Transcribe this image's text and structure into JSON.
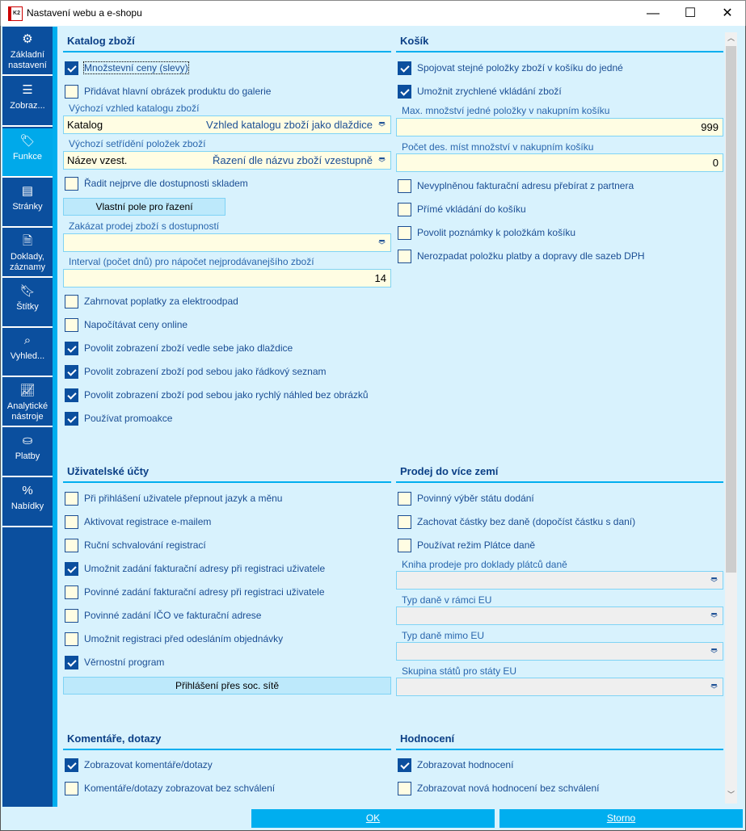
{
  "window": {
    "title": "Nastavení webu a e-shopu",
    "app_logo": "K2",
    "minimize": "—",
    "maximize": "☐",
    "close": "✕"
  },
  "sidebar": {
    "items": [
      {
        "label": "Základní nastavení",
        "icon": "gear-icon"
      },
      {
        "label": "Zobraz...",
        "icon": "list-icon"
      },
      {
        "label": "Funkce",
        "icon": "tag-icon",
        "active": true
      },
      {
        "label": "Stránky",
        "icon": "page-icon"
      },
      {
        "label": "Doklady, záznamy",
        "icon": "document-icon"
      },
      {
        "label": "Štítky",
        "icon": "bookmark-icon"
      },
      {
        "label": "Vyhled...",
        "icon": "search-icon"
      },
      {
        "label": "Analytické nástroje",
        "icon": "chart-icon"
      },
      {
        "label": "Platby",
        "icon": "payment-icon"
      },
      {
        "label": "Nabídky",
        "icon": "percent-icon"
      }
    ]
  },
  "katalog": {
    "title": "Katalog zboží",
    "c1": {
      "label": "Množstevní ceny (slevy)",
      "checked": true
    },
    "c2": {
      "label": "Přidávat hlavní obrázek produktu do galerie",
      "checked": false
    },
    "vzhled_label": "Výchozí vzhled katalogu zboží",
    "vzhled_value": "Katalog",
    "vzhled_desc": "Vzhled katalogu zboží jako dlaždice",
    "setrideni_label": "Výchozí setřídění položek zboží",
    "setrideni_value": "Název vzest.",
    "setrideni_desc": "Řazení dle názvu zboží vzestupně",
    "c3": {
      "label": "Řadit nejprve dle dostupnosti skladem",
      "checked": false
    },
    "vlastni_pole_button": "Vlastní pole pro řazení",
    "zakazat_label": "Zakázat prodej zboží s dostupností",
    "zakazat_value": "",
    "interval_label": "Interval (počet dnů) pro nápočet nejprodávanejšího zboží",
    "interval_value": "14",
    "c4": {
      "label": "Zahrnovat poplatky za elektroodpad",
      "checked": false
    },
    "c5": {
      "label": "Napočítávat ceny online",
      "checked": false
    },
    "c6": {
      "label": "Povolit zobrazení zboží vedle sebe jako dlaždice",
      "checked": true
    },
    "c7": {
      "label": "Povolit zobrazení zboží pod sebou jako řádkový seznam",
      "checked": true
    },
    "c8": {
      "label": "Povolit zobrazení zboží pod sebou jako rychlý náhled bez obrázků",
      "checked": true
    },
    "c9": {
      "label": "Používat promoakce",
      "checked": true
    }
  },
  "kosik": {
    "title": "Košík",
    "c1": {
      "label": "Spojovat stejné položky zboží v košíku do jedné",
      "checked": true
    },
    "c2": {
      "label": "Umožnit zrychlené vkládání zboží",
      "checked": true
    },
    "max_label": "Max. množství jedné položky v nakupním košíku",
    "max_value": "999",
    "des_label": "Počet des. míst množství v nakupním košíku",
    "des_value": "0",
    "c3": {
      "label": "Nevyplněnou fakturační adresu přebírat z partnera",
      "checked": false
    },
    "c4": {
      "label": "Přímé vkládání do košíku",
      "checked": false
    },
    "c5": {
      "label": "Povolit poznámky k položkám košíku",
      "checked": false
    },
    "c6": {
      "label": "Nerozpadat položku platby a dopravy dle sazeb DPH",
      "checked": false
    }
  },
  "ucty": {
    "title": "Uživatelské účty",
    "c1": {
      "label": "Při přihlášení uživatele přepnout jazyk a měnu",
      "checked": false
    },
    "c2": {
      "label": "Aktivovat registrace e-mailem",
      "checked": false
    },
    "c3": {
      "label": "Ruční schvalování registrací",
      "checked": false
    },
    "c4": {
      "label": "Umožnit zadání fakturační adresy při registraci uživatele",
      "checked": true
    },
    "c5": {
      "label": "Povinné zadání fakturační adresy při registraci uživatele",
      "checked": false
    },
    "c6": {
      "label": "Povinné zadání IČO ve fakturační adrese",
      "checked": false
    },
    "c7": {
      "label": "Umožnit registraci před odesláním objednávky",
      "checked": false
    },
    "c8": {
      "label": "Věrnostní program",
      "checked": true
    },
    "social_button": "Přihlášení přes soc. sítě"
  },
  "prodej": {
    "title": "Prodej do více zemí",
    "c1": {
      "label": "Povinný výběr státu dodání",
      "checked": false
    },
    "c2": {
      "label": "Zachovat částky bez daně (dopočíst částku s daní)",
      "checked": false
    },
    "c3": {
      "label": "Používat režim Plátce daně",
      "checked": false
    },
    "kniha_label": "Kniha prodeje pro doklady plátců daně",
    "kniha_value": "",
    "typ_eu_label": "Typ daně v rámci EU",
    "typ_eu_value": "",
    "typ_mimo_label": "Typ daně mimo EU",
    "typ_mimo_value": "",
    "skupina_label": "Skupina států pro státy EU",
    "skupina_value": ""
  },
  "komentare": {
    "title": "Komentáře, dotazy",
    "c1": {
      "label": "Zobrazovat komentáře/dotazy",
      "checked": true
    },
    "c2": {
      "label": "Komentáře/dotazy zobrazovat bez schválení",
      "checked": false
    }
  },
  "hodnoceni": {
    "title": "Hodnocení",
    "c1": {
      "label": "Zobrazovat hodnocení",
      "checked": true
    },
    "c2": {
      "label": "Zobrazovat nová hodnocení bez schválení",
      "checked": false
    }
  },
  "footer": {
    "ok": "OK",
    "cancel": "Storno"
  },
  "colors": {
    "sidebar": "#0b4f9e",
    "accent": "#00aeef",
    "background": "#d8f2fd",
    "input": "#fffde3"
  }
}
